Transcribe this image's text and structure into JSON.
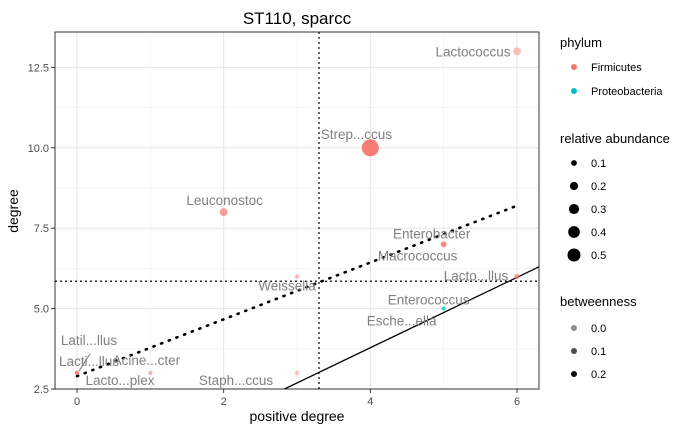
{
  "chart_data": {
    "type": "scatter",
    "title": "ST110, sparcc",
    "xlabel": "positive degree",
    "ylabel": "degree",
    "xlim": [
      -0.3,
      6.3
    ],
    "ylim": [
      2.5,
      13.6
    ],
    "x_ticks": [
      0,
      2,
      4,
      6
    ],
    "x_tick_labels": [
      "0",
      "2",
      "4",
      "6"
    ],
    "y_ticks": [
      2.5,
      5.0,
      7.5,
      10.0,
      12.5
    ],
    "y_tick_labels": [
      "2.5",
      "5.0",
      "7.5",
      "10.0",
      "12.5"
    ],
    "grid": true,
    "legend_position": "right",
    "colors": {
      "Firmicutes": "#F8766D",
      "Proteobacteria": "#00BFC4"
    },
    "points": [
      {
        "label": "Lactococcus",
        "x": 6,
        "y": 13,
        "phylum": "Firmicutes",
        "abundance": 0.12,
        "betweenness": 0.0
      },
      {
        "label": "Strep...ccus",
        "x": 4,
        "y": 10,
        "phylum": "Firmicutes",
        "abundance": 0.55,
        "betweenness": 0.25
      },
      {
        "label": "Leuconostoc",
        "x": 2,
        "y": 8,
        "phylum": "Firmicutes",
        "abundance": 0.12,
        "betweenness": 0.12
      },
      {
        "label": "Enterobacter",
        "x": 5,
        "y": 7,
        "phylum": "Firmicutes",
        "abundance": 0.07,
        "betweenness": 0.12
      },
      {
        "label": "Macrococcus",
        "x": 5,
        "y": 7,
        "phylum": "Firmicutes",
        "abundance": 0.03,
        "betweenness": 0.1
      },
      {
        "label": "Weissella",
        "x": 3,
        "y": 6,
        "phylum": "Firmicutes",
        "abundance": 0.02,
        "betweenness": 0.02
      },
      {
        "label": "Lacto...llus",
        "x": 6,
        "y": 6,
        "phylum": "Firmicutes",
        "abundance": 0.05,
        "betweenness": 0.1
      },
      {
        "label": "Enterococcus",
        "x": 5,
        "y": 5,
        "phylum": "Proteobacteria",
        "abundance": 0.01,
        "betweenness": 0.0
      },
      {
        "label": "Esche...ella",
        "x": 5,
        "y": 5,
        "phylum": "Proteobacteria",
        "abundance": 0.01,
        "betweenness": 0.0
      },
      {
        "label": "Latil...llus",
        "x": 0,
        "y": 3,
        "phylum": "Firmicutes",
        "abundance": 0.01,
        "betweenness": 0.0
      },
      {
        "label": "Lacti...llus",
        "x": 0,
        "y": 3,
        "phylum": "Firmicutes",
        "abundance": 0.01,
        "betweenness": 0.05
      },
      {
        "label": "Lacto...plex",
        "x": 0,
        "y": 3,
        "phylum": "Firmicutes",
        "abundance": 0.01,
        "betweenness": 0.0
      },
      {
        "label": "Acine...cter",
        "x": 1,
        "y": 3,
        "phylum": "Firmicutes",
        "abundance": 0.02,
        "betweenness": 0.05
      },
      {
        "label": "Staph...ccus",
        "x": 3,
        "y": 3,
        "phylum": "Firmicutes",
        "abundance": 0.01,
        "betweenness": 0.0
      }
    ],
    "reference_lines": [
      {
        "kind": "vline",
        "value": 3.3,
        "style": "dotted"
      },
      {
        "kind": "hline",
        "value": 5.85,
        "style": "dotted"
      },
      {
        "kind": "segment",
        "style": "dotted-thick",
        "x": [
          0,
          6
        ],
        "y": [
          2.9,
          8.2
        ]
      },
      {
        "kind": "segment",
        "style": "solid",
        "x": [
          2.6,
          6.3
        ],
        "y": [
          2.25,
          6.3
        ]
      }
    ],
    "legends": {
      "phylum": {
        "title": "phylum",
        "items": [
          "Firmicutes",
          "Proteobacteria"
        ]
      },
      "abundance": {
        "title": "relative abundance",
        "items": [
          "0.1",
          "0.2",
          "0.3",
          "0.4",
          "0.5"
        ],
        "values": [
          0.1,
          0.2,
          0.3,
          0.4,
          0.5
        ]
      },
      "betweenness": {
        "title": "betweenness",
        "items": [
          "0.0",
          "0.1",
          "0.2"
        ],
        "values": [
          0.0,
          0.1,
          0.2
        ]
      }
    }
  }
}
